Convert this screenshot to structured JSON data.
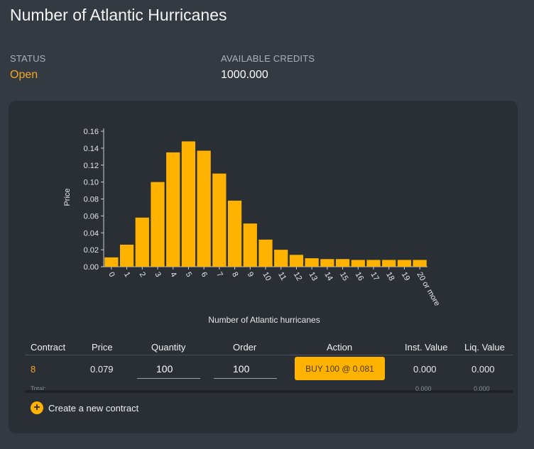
{
  "header": {
    "title": "Number of Atlantic Hurricanes"
  },
  "status": {
    "label": "STATUS",
    "value": "Open"
  },
  "credits": {
    "label": "AVAILABLE CREDITS",
    "value": "1000.000"
  },
  "chart_data": {
    "type": "bar",
    "title": "",
    "xlabel": "Number of Atlantic hurricanes",
    "ylabel": "Price",
    "ylim": [
      0,
      0.16
    ],
    "yticks": [
      "0.00",
      "0.02",
      "0.04",
      "0.06",
      "0.08",
      "0.10",
      "0.12",
      "0.14",
      "0.16"
    ],
    "categories": [
      "0",
      "1",
      "2",
      "3",
      "4",
      "5",
      "6",
      "7",
      "8",
      "9",
      "10",
      "11",
      "12",
      "13",
      "14",
      "15",
      "16",
      "17",
      "18",
      "19",
      "20 or more"
    ],
    "values": [
      0.011,
      0.026,
      0.058,
      0.1,
      0.135,
      0.148,
      0.137,
      0.11,
      0.078,
      0.051,
      0.032,
      0.02,
      0.014,
      0.01,
      0.009,
      0.009,
      0.008,
      0.008,
      0.008,
      0.008,
      0.008
    ],
    "bar_color": "#ffb300",
    "grid": false,
    "legend": "none"
  },
  "table": {
    "headers": [
      "Contract",
      "Price",
      "Quantity",
      "Order",
      "Action",
      "Inst. Value",
      "Liq. Value"
    ],
    "row": {
      "contract": "8",
      "price": "0.079",
      "quantity": "100",
      "order": "100",
      "action": "BUY 100 @ 0.081",
      "inst_value": "0.000",
      "liq_value": "0.000"
    },
    "total": {
      "label": "Total:",
      "inst_value": "0.000",
      "liq_value": "0.000"
    }
  },
  "create_label": "Create a new contract",
  "colors": {
    "accent": "#ffb300",
    "status": "#f5a623",
    "background": "#343a42",
    "panel": "#2a2f36"
  }
}
